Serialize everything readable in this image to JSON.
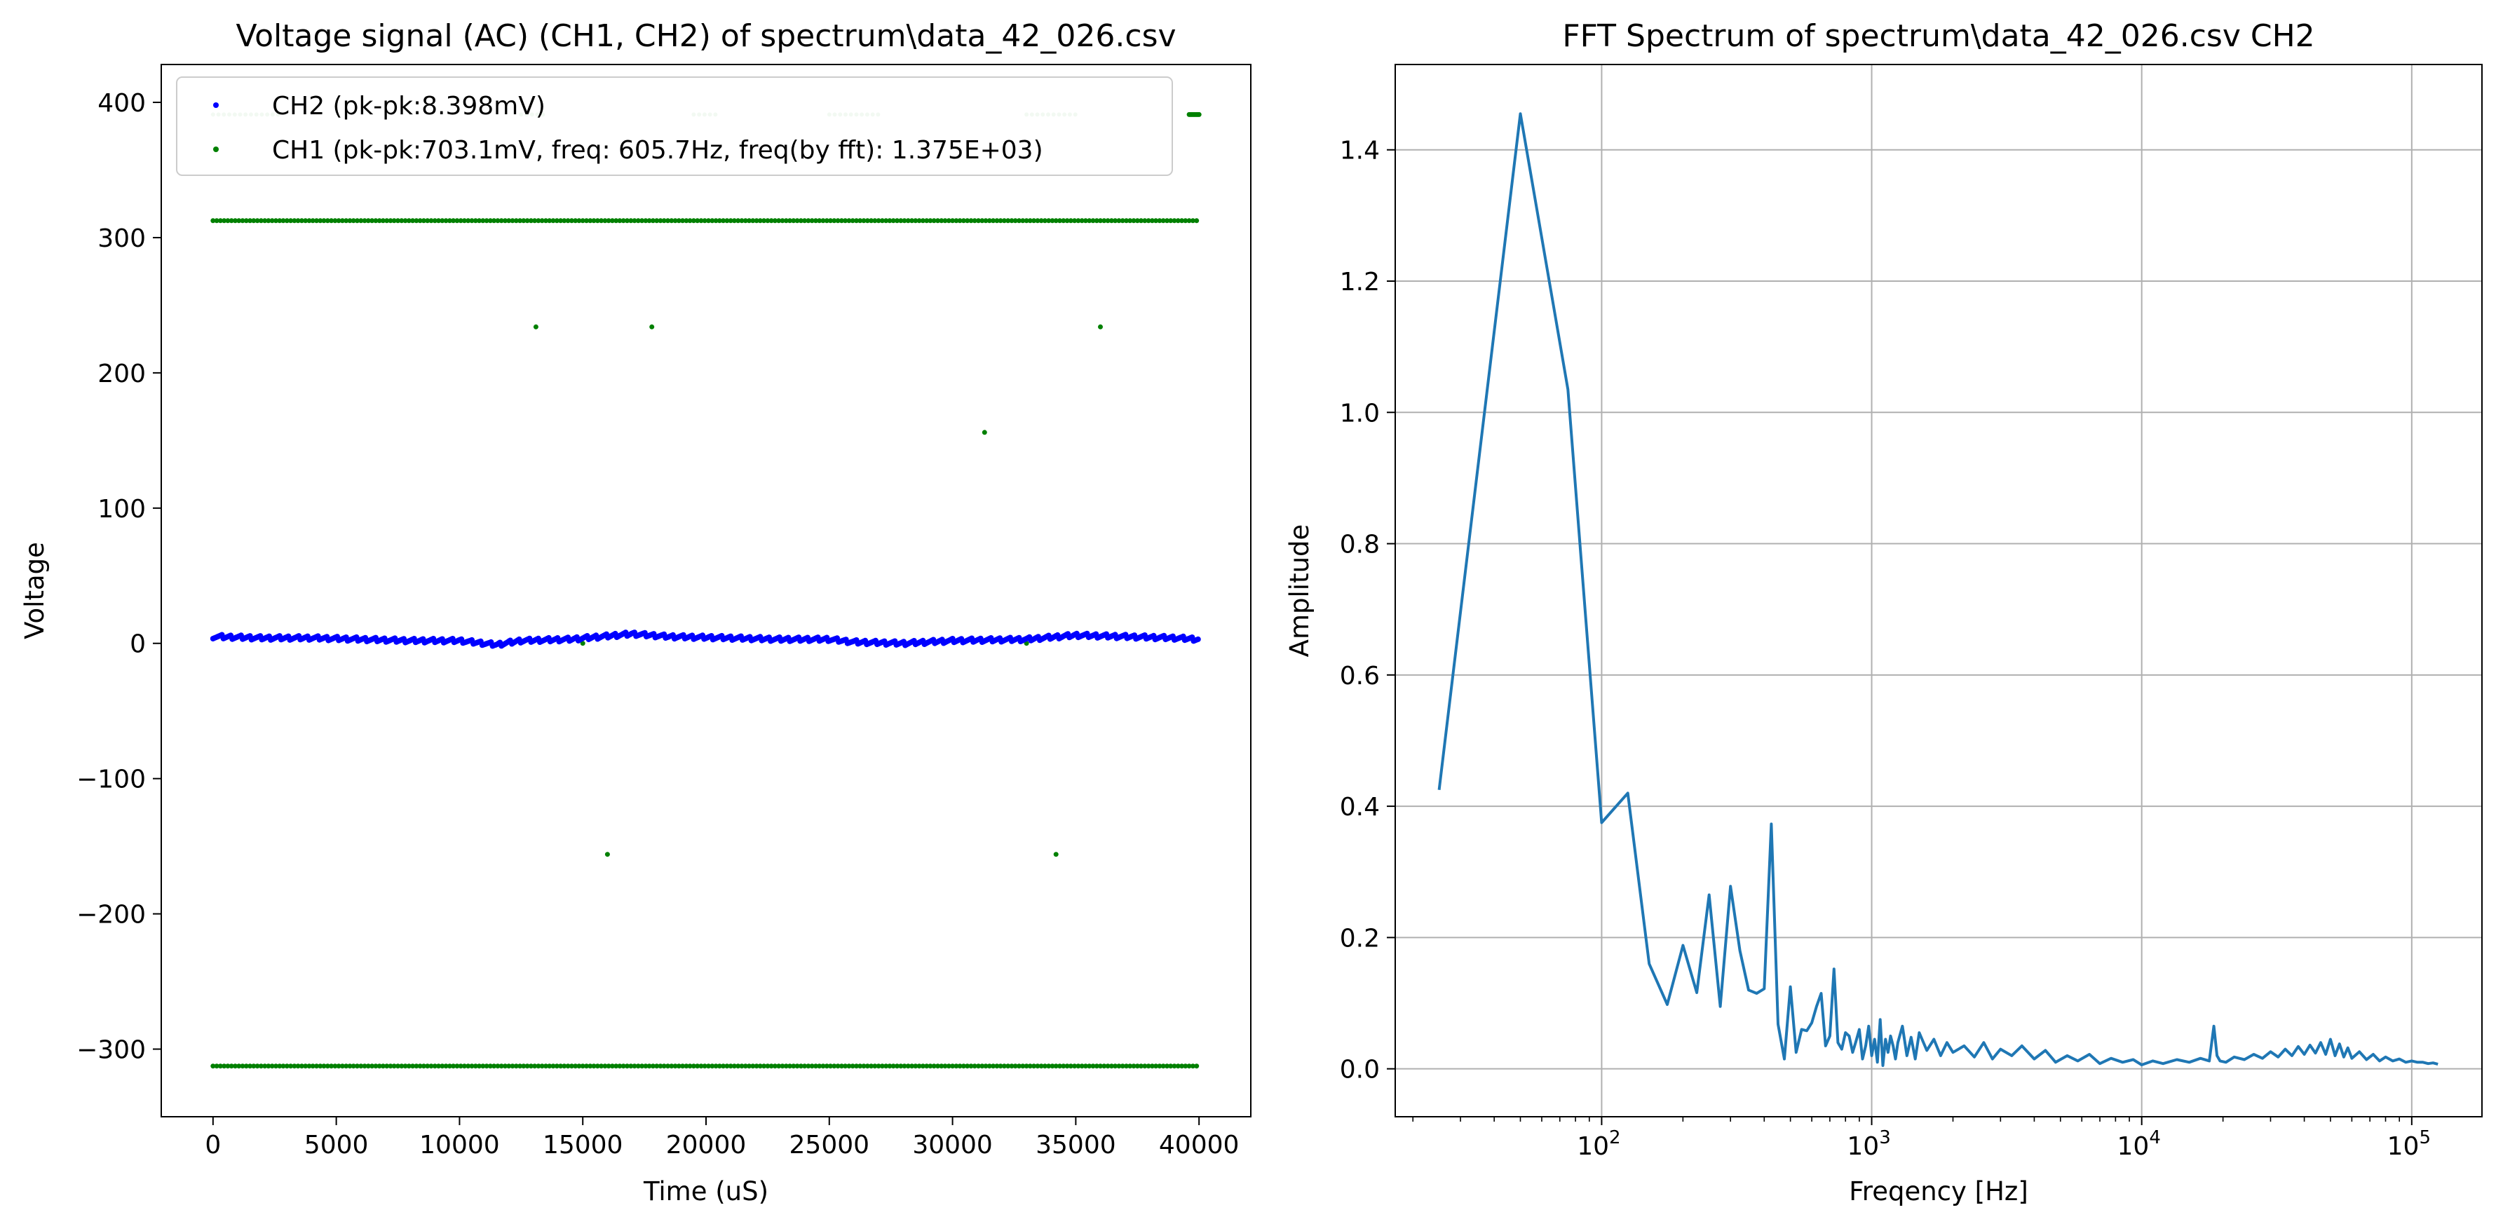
{
  "chart_data": [
    {
      "type": "scatter",
      "title": "Voltage signal (AC) (CH1, CH2) of spectrum\\data_42_026.csv",
      "xlabel": "Time (uS)",
      "ylabel": "Voltage",
      "xlim": [
        -2100,
        42100
      ],
      "ylim": [
        -350,
        428
      ],
      "x_ticks": [
        0,
        5000,
        10000,
        15000,
        20000,
        25000,
        30000,
        35000,
        40000
      ],
      "x_tick_labels": [
        "0",
        "5000",
        "10000",
        "15000",
        "20000",
        "25000",
        "30000",
        "35000",
        "40000"
      ],
      "y_ticks": [
        -300,
        -200,
        -100,
        0,
        100,
        200,
        300,
        400
      ],
      "y_tick_labels": [
        "−300",
        "−200",
        "−100",
        "0",
        "100",
        "200",
        "300",
        "400"
      ],
      "grid": false,
      "legend_position": "upper-left",
      "series": [
        {
          "name": "CH2 (pk-pk:8.398mV)",
          "color": "#0000ff",
          "x_range": [
            0,
            40000
          ],
          "trace": [
            [
              0,
              5
            ],
            [
              2000,
              4
            ],
            [
              4000,
              4
            ],
            [
              6000,
              3
            ],
            [
              8000,
              2
            ],
            [
              10000,
              2
            ],
            [
              11500,
              -1
            ],
            [
              12500,
              2
            ],
            [
              14500,
              3
            ],
            [
              17000,
              7
            ],
            [
              18500,
              5
            ],
            [
              21000,
              4
            ],
            [
              23000,
              3
            ],
            [
              25000,
              3
            ],
            [
              26000,
              1
            ],
            [
              28000,
              0
            ],
            [
              30000,
              2
            ],
            [
              33000,
              3
            ],
            [
              35000,
              6
            ],
            [
              37000,
              5
            ],
            [
              39000,
              4
            ],
            [
              40000,
              3
            ]
          ]
        },
        {
          "name": "CH1 (pk-pk:703.1mV, freq: 605.7Hz, freq(by fft): 1.375E+03)",
          "color": "#008000",
          "x_range": [
            0,
            40000
          ],
          "levels": [
            312.5,
            -312.5
          ],
          "outliers": [
            [
              13100,
              234
            ],
            [
              17800,
              234
            ],
            [
              36000,
              234
            ],
            [
              31300,
              156
            ],
            [
              16000,
              -156
            ],
            [
              34200,
              -156
            ],
            [
              15000,
              0
            ],
            [
              33000,
              0
            ]
          ],
          "faint_segments_at_391": [
            [
              0,
              2800
            ],
            [
              12500,
              13500
            ],
            [
              19500,
              20500
            ],
            [
              25000,
              27000
            ],
            [
              33000,
              35000
            ]
          ],
          "solid_segment_at_391": [
            39600,
            40000
          ]
        }
      ]
    },
    {
      "type": "line",
      "title": "FFT Spectrum of spectrum\\data_42_026.csv CH2",
      "xlabel": "Freqency [Hz]",
      "ylabel": "Amplitude",
      "xscale": "log",
      "xlim": [
        17.2,
        182000
      ],
      "ylim": [
        -0.073,
        1.53
      ],
      "y_ticks": [
        0.0,
        0.2,
        0.4,
        0.6,
        0.8,
        1.0,
        1.2,
        1.4
      ],
      "y_tick_labels": [
        "0.0",
        "0.2",
        "0.4",
        "0.6",
        "0.8",
        "1.0",
        "1.2",
        "1.4"
      ],
      "x_ticks": [
        100,
        1000,
        10000,
        100000
      ],
      "x_tick_labels": [
        {
          "base": "10",
          "exp": "2"
        },
        {
          "base": "10",
          "exp": "3"
        },
        {
          "base": "10",
          "exp": "4"
        },
        {
          "base": "10",
          "exp": "5"
        }
      ],
      "grid": true,
      "color": "#1f77b4",
      "x": [
        25,
        50,
        75,
        100,
        125,
        150,
        175,
        200,
        225,
        250,
        275,
        300,
        325,
        350,
        375,
        400,
        425,
        450,
        475,
        500,
        525,
        550,
        575,
        600,
        625,
        650,
        675,
        700,
        725,
        750,
        775,
        800,
        825,
        850,
        875,
        900,
        925,
        950,
        975,
        1000,
        1025,
        1050,
        1075,
        1100,
        1125,
        1150,
        1175,
        1200,
        1225,
        1250,
        1300,
        1350,
        1400,
        1450,
        1500,
        1600,
        1700,
        1800,
        1900,
        2000,
        2200,
        2400,
        2600,
        2800,
        3000,
        3300,
        3600,
        4000,
        4400,
        4800,
        5300,
        5800,
        6400,
        7000,
        7700,
        8500,
        9300,
        10000,
        11000,
        12000,
        13500,
        15000,
        16500,
        17800,
        18500,
        19000,
        19500,
        20500,
        22000,
        24000,
        26000,
        28000,
        30000,
        32000,
        34000,
        36000,
        38000,
        40000,
        42000,
        44000,
        46000,
        48000,
        50000,
        52000,
        54000,
        56000,
        58000,
        60000,
        64000,
        68000,
        72000,
        76000,
        80000,
        85000,
        90000,
        95000,
        100000,
        105000,
        110000,
        115000,
        120000,
        125000
      ],
      "y": [
        0.425,
        1.455,
        1.035,
        0.375,
        0.42,
        0.16,
        0.098,
        0.188,
        0.116,
        0.265,
        0.095,
        0.278,
        0.18,
        0.12,
        0.115,
        0.122,
        0.373,
        0.068,
        0.015,
        0.125,
        0.025,
        0.06,
        0.058,
        0.07,
        0.095,
        0.115,
        0.035,
        0.05,
        0.152,
        0.04,
        0.03,
        0.055,
        0.05,
        0.025,
        0.042,
        0.06,
        0.015,
        0.035,
        0.065,
        0.02,
        0.045,
        0.01,
        0.075,
        0.005,
        0.045,
        0.025,
        0.05,
        0.035,
        0.015,
        0.04,
        0.065,
        0.02,
        0.048,
        0.015,
        0.055,
        0.028,
        0.045,
        0.02,
        0.04,
        0.025,
        0.035,
        0.018,
        0.04,
        0.015,
        0.03,
        0.02,
        0.035,
        0.015,
        0.028,
        0.01,
        0.02,
        0.012,
        0.022,
        0.008,
        0.016,
        0.01,
        0.014,
        0.006,
        0.012,
        0.008,
        0.014,
        0.01,
        0.016,
        0.012,
        0.065,
        0.02,
        0.012,
        0.01,
        0.018,
        0.014,
        0.022,
        0.016,
        0.026,
        0.018,
        0.03,
        0.02,
        0.034,
        0.022,
        0.036,
        0.024,
        0.04,
        0.022,
        0.045,
        0.02,
        0.038,
        0.018,
        0.032,
        0.016,
        0.026,
        0.014,
        0.022,
        0.012,
        0.018,
        0.012,
        0.015,
        0.01,
        0.012,
        0.01,
        0.01,
        0.008,
        0.009,
        0.007
      ]
    }
  ]
}
